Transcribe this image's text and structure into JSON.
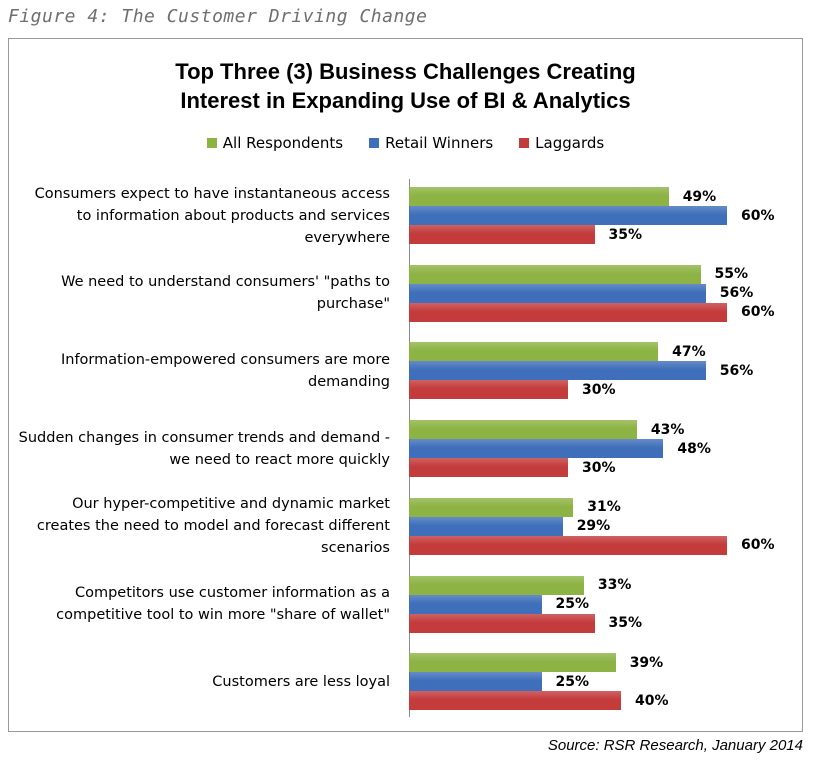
{
  "figure_caption": "Figure 4: The Customer Driving Change",
  "source": "Source: RSR Research, January 2014",
  "chart_data": {
    "type": "bar",
    "orientation": "horizontal",
    "title": [
      "Top Three (3) Business Challenges Creating",
      "Interest in Expanding Use of BI & Analytics"
    ],
    "legend_position": "top-center",
    "series": [
      {
        "name": "All Respondents",
        "color": "#8db344",
        "values": [
          49,
          55,
          47,
          43,
          31,
          33,
          39
        ]
      },
      {
        "name": "Retail Winners",
        "color": "#3f6fba",
        "values": [
          60,
          56,
          56,
          48,
          29,
          25,
          25
        ]
      },
      {
        "name": "Laggards",
        "color": "#c43b3c",
        "values": [
          35,
          60,
          30,
          30,
          60,
          35,
          40
        ]
      }
    ],
    "categories": [
      [
        "Consumers expect to have instantaneous access",
        "to information about products and services",
        "everywhere"
      ],
      [
        "We need to understand consumers' \"paths to",
        "purchase\""
      ],
      [
        "Information-empowered consumers are more",
        "demanding"
      ],
      [
        "Sudden changes in consumer trends and demand -",
        "we need to react more quickly"
      ],
      [
        "Our hyper-competitive and dynamic market",
        "creates the need to model and forecast different",
        "scenarios"
      ],
      [
        "Competitors use customer information as a",
        "competitive tool to win more \"share of wallet\""
      ],
      [
        "Customers are less loyal"
      ]
    ],
    "value_suffix": "%",
    "xlim": [
      0,
      70
    ]
  }
}
